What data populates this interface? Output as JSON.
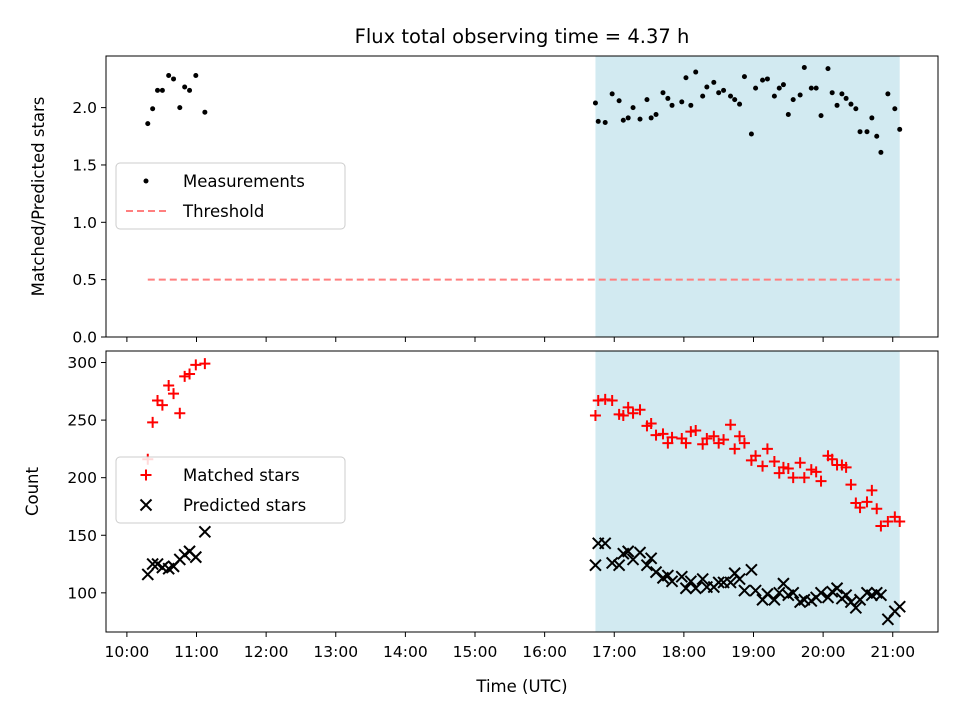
{
  "chart_data": {
    "title": "Flux total observing time = 4.37 h",
    "xlabel": "Time (UTC)",
    "x_unit": "hour of day (UTC)",
    "xlim": [
      9.7,
      21.65
    ],
    "xticks": [
      10,
      11,
      12,
      13,
      14,
      15,
      16,
      17,
      18,
      19,
      20,
      21
    ],
    "xtick_labels": [
      "10:00",
      "11:00",
      "12:00",
      "13:00",
      "14:00",
      "15:00",
      "16:00",
      "17:00",
      "18:00",
      "19:00",
      "20:00",
      "21:00"
    ],
    "shaded_region": {
      "x": [
        16.73,
        21.1
      ],
      "color": "#add8e6"
    },
    "panels": [
      {
        "type": "scatter",
        "ylabel": "Matched/Predicted stars",
        "ylim": [
          0,
          2.45
        ],
        "yticks": [
          0.0,
          0.5,
          1.0,
          1.5,
          2.0
        ],
        "ytick_labels": [
          "0.0",
          "0.5",
          "1.0",
          "1.5",
          "2.0"
        ],
        "legend_position": "center-left",
        "series": [
          {
            "name": "Measurements",
            "marker": "dot",
            "color": "#000000",
            "points": [
              [
                10.3,
                1.86
              ],
              [
                10.37,
                1.99
              ],
              [
                10.44,
                2.15
              ],
              [
                10.51,
                2.15
              ],
              [
                10.6,
                2.28
              ],
              [
                10.67,
                2.25
              ],
              [
                10.76,
                2.0
              ],
              [
                10.83,
                2.18
              ],
              [
                10.9,
                2.15
              ],
              [
                10.99,
                2.28
              ],
              [
                11.12,
                1.96
              ],
              [
                16.73,
                2.04
              ],
              [
                16.77,
                1.88
              ],
              [
                16.87,
                1.87
              ],
              [
                16.97,
                2.12
              ],
              [
                17.07,
                2.06
              ],
              [
                17.13,
                1.89
              ],
              [
                17.2,
                1.91
              ],
              [
                17.27,
                2.0
              ],
              [
                17.37,
                1.9
              ],
              [
                17.47,
                2.07
              ],
              [
                17.53,
                1.91
              ],
              [
                17.6,
                1.94
              ],
              [
                17.7,
                2.13
              ],
              [
                17.77,
                2.08
              ],
              [
                17.83,
                2.02
              ],
              [
                17.97,
                2.05
              ],
              [
                18.03,
                2.26
              ],
              [
                18.1,
                2.02
              ],
              [
                18.17,
                2.31
              ],
              [
                18.27,
                2.1
              ],
              [
                18.33,
                2.18
              ],
              [
                18.43,
                2.22
              ],
              [
                18.5,
                2.13
              ],
              [
                18.57,
                2.15
              ],
              [
                18.67,
                2.1
              ],
              [
                18.73,
                2.07
              ],
              [
                18.8,
                2.03
              ],
              [
                18.87,
                2.27
              ],
              [
                18.97,
                1.77
              ],
              [
                19.03,
                2.17
              ],
              [
                19.13,
                2.24
              ],
              [
                19.2,
                2.25
              ],
              [
                19.3,
                2.1
              ],
              [
                19.37,
                2.17
              ],
              [
                19.43,
                2.2
              ],
              [
                19.5,
                1.94
              ],
              [
                19.57,
                2.07
              ],
              [
                19.67,
                2.11
              ],
              [
                19.73,
                2.35
              ],
              [
                19.83,
                2.17
              ],
              [
                19.9,
                2.17
              ],
              [
                19.97,
                1.93
              ],
              [
                20.07,
                2.34
              ],
              [
                20.13,
                2.13
              ],
              [
                20.2,
                2.02
              ],
              [
                20.27,
                2.12
              ],
              [
                20.33,
                2.08
              ],
              [
                20.4,
                2.03
              ],
              [
                20.47,
                1.99
              ],
              [
                20.53,
                1.79
              ],
              [
                20.63,
                1.79
              ],
              [
                20.7,
                1.91
              ],
              [
                20.77,
                1.75
              ],
              [
                20.83,
                1.61
              ],
              [
                20.93,
                2.12
              ],
              [
                21.03,
                1.99
              ],
              [
                21.1,
                1.81
              ]
            ]
          },
          {
            "name": "Threshold",
            "type": "line",
            "style": "dashed",
            "color": "#ff7f7f",
            "x": [
              10.3,
              21.1
            ],
            "y": [
              0.5,
              0.5
            ]
          }
        ]
      },
      {
        "type": "scatter",
        "ylabel": "Count",
        "ylim": [
          66,
          310
        ],
        "yticks": [
          100,
          150,
          200,
          250,
          300
        ],
        "ytick_labels": [
          "100",
          "150",
          "200",
          "250",
          "300"
        ],
        "legend_position": "center-left",
        "series": [
          {
            "name": "Matched stars",
            "marker": "plus",
            "color": "#ff0000",
            "points": [
              [
                10.3,
                216
              ],
              [
                10.37,
                248
              ],
              [
                10.44,
                267
              ],
              [
                10.51,
                263
              ],
              [
                10.6,
                280
              ],
              [
                10.67,
                273
              ],
              [
                10.76,
                256
              ],
              [
                10.83,
                288
              ],
              [
                10.9,
                290
              ],
              [
                10.99,
                298
              ],
              [
                11.12,
                299
              ],
              [
                16.73,
                254
              ],
              [
                16.77,
                267
              ],
              [
                16.87,
                268
              ],
              [
                16.97,
                267
              ],
              [
                17.07,
                255
              ],
              [
                17.13,
                254
              ],
              [
                17.2,
                261
              ],
              [
                17.27,
                256
              ],
              [
                17.37,
                259
              ],
              [
                17.47,
                245
              ],
              [
                17.53,
                247
              ],
              [
                17.6,
                237
              ],
              [
                17.7,
                238
              ],
              [
                17.77,
                230
              ],
              [
                17.83,
                235
              ],
              [
                17.97,
                234
              ],
              [
                18.03,
                230
              ],
              [
                18.1,
                240
              ],
              [
                18.17,
                241
              ],
              [
                18.27,
                229
              ],
              [
                18.33,
                234
              ],
              [
                18.43,
                236
              ],
              [
                18.5,
                230
              ],
              [
                18.57,
                233
              ],
              [
                18.67,
                246
              ],
              [
                18.73,
                225
              ],
              [
                18.8,
                236
              ],
              [
                18.87,
                230
              ],
              [
                18.97,
                215
              ],
              [
                19.03,
                219
              ],
              [
                19.13,
                210
              ],
              [
                19.2,
                225
              ],
              [
                19.3,
                214
              ],
              [
                19.37,
                204
              ],
              [
                19.43,
                209
              ],
              [
                19.5,
                208
              ],
              [
                19.57,
                200
              ],
              [
                19.67,
                213
              ],
              [
                19.73,
                200
              ],
              [
                19.83,
                207
              ],
              [
                19.9,
                205
              ],
              [
                19.97,
                197
              ],
              [
                20.07,
                219
              ],
              [
                20.13,
                216
              ],
              [
                20.2,
                211
              ],
              [
                20.27,
                211
              ],
              [
                20.33,
                209
              ],
              [
                20.4,
                194
              ],
              [
                20.47,
                178
              ],
              [
                20.53,
                174
              ],
              [
                20.63,
                179
              ],
              [
                20.7,
                189
              ],
              [
                20.77,
                173
              ],
              [
                20.83,
                158
              ],
              [
                20.93,
                162
              ],
              [
                21.03,
                166
              ],
              [
                21.1,
                162
              ]
            ]
          },
          {
            "name": "Predicted stars",
            "marker": "x",
            "color": "#000000",
            "points": [
              [
                10.3,
                116
              ],
              [
                10.37,
                125
              ],
              [
                10.44,
                125
              ],
              [
                10.51,
                122
              ],
              [
                10.6,
                121
              ],
              [
                10.67,
                123
              ],
              [
                10.76,
                129
              ],
              [
                10.83,
                133
              ],
              [
                10.9,
                136
              ],
              [
                10.99,
                131
              ],
              [
                11.12,
                153
              ],
              [
                16.73,
                124
              ],
              [
                16.77,
                143
              ],
              [
                16.87,
                143
              ],
              [
                16.97,
                126
              ],
              [
                17.07,
                124
              ],
              [
                17.13,
                134
              ],
              [
                17.2,
                136
              ],
              [
                17.27,
                129
              ],
              [
                17.37,
                135
              ],
              [
                17.47,
                124
              ],
              [
                17.53,
                130
              ],
              [
                17.6,
                118
              ],
              [
                17.7,
                113
              ],
              [
                17.77,
                115
              ],
              [
                17.83,
                110
              ],
              [
                17.97,
                114
              ],
              [
                18.03,
                104
              ],
              [
                18.1,
                110
              ],
              [
                18.17,
                104
              ],
              [
                18.27,
                112
              ],
              [
                18.33,
                105
              ],
              [
                18.43,
                105
              ],
              [
                18.5,
                109
              ],
              [
                18.57,
                109
              ],
              [
                18.67,
                109
              ],
              [
                18.73,
                117
              ],
              [
                18.8,
                112
              ],
              [
                18.87,
                102
              ],
              [
                18.97,
                120
              ],
              [
                19.03,
                102
              ],
              [
                19.13,
                94
              ],
              [
                19.2,
                99
              ],
              [
                19.3,
                94
              ],
              [
                19.37,
                100
              ],
              [
                19.43,
                108
              ],
              [
                19.5,
                98
              ],
              [
                19.57,
                100
              ],
              [
                19.67,
                92
              ],
              [
                19.73,
                94
              ],
              [
                19.83,
                93
              ],
              [
                19.9,
                96
              ],
              [
                19.97,
                100
              ],
              [
                20.07,
                96
              ],
              [
                20.13,
                101
              ],
              [
                20.2,
                104
              ],
              [
                20.27,
                95
              ],
              [
                20.33,
                98
              ],
              [
                20.4,
                92
              ],
              [
                20.47,
                87
              ],
              [
                20.53,
                94
              ],
              [
                20.63,
                100
              ],
              [
                20.7,
                98
              ],
              [
                20.77,
                100
              ],
              [
                20.83,
                98
              ],
              [
                20.93,
                77
              ],
              [
                21.03,
                84
              ],
              [
                21.1,
                88
              ]
            ]
          }
        ]
      }
    ]
  }
}
